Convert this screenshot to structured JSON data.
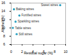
{
  "chart_data": {
    "type": "scatter",
    "x_label": "Residual sugar (%)",
    "y_label": "Alcohol (%)",
    "x": [
      9,
      0.5,
      1.5,
      0.8,
      0.3,
      1
    ],
    "values": [
      15.5,
      14.5,
      13,
      11.5,
      10,
      8.5
    ],
    "labels": [
      "Sweet wines",
      "Baking wines",
      "Fortified wines",
      "Sparkling wines",
      "Table wines",
      "Still wines"
    ],
    "color": "#2a9fc0",
    "xlim": [
      0,
      10
    ],
    "xticks": [
      0,
      2,
      4,
      6,
      8,
      10
    ],
    "ylim": [
      6,
      16
    ],
    "yticks": [
      6,
      8,
      10,
      12,
      14,
      16
    ],
    "grid": false
  }
}
